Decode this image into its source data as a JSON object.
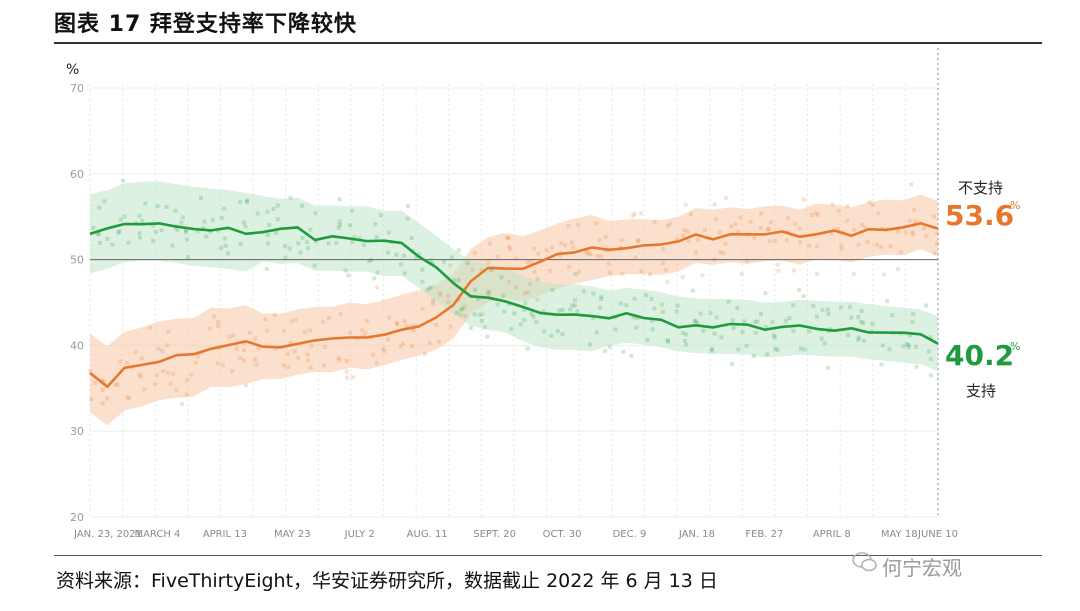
{
  "header": {
    "title": "图表 17 拜登支持率下降较快"
  },
  "source": {
    "text": "资料来源：FiveThirtyEight，华安证券研究所，数据截止 2022 年 6 月 13 日"
  },
  "watermark": {
    "text": "何宁宏观"
  },
  "chart_data": {
    "type": "line",
    "title": "",
    "ylabel": "%",
    "xlabel": "",
    "ylim": [
      20,
      70
    ],
    "yticks": [
      20,
      30,
      40,
      50,
      60,
      70
    ],
    "x_tick_labels": [
      "JAN. 23, 2021",
      "MARCH 4",
      "APRIL 13",
      "MAY 23",
      "JULY 2",
      "AUG. 11",
      "SEPT. 20",
      "OCT. 30",
      "DEC. 9",
      "JAN. 18",
      "FEB. 27",
      "APRIL 8",
      "MAY 18",
      "JUNE 10"
    ],
    "x_tick_positions": [
      0,
      40,
      80,
      120,
      160,
      200,
      240,
      280,
      320,
      360,
      400,
      440,
      480,
      503
    ],
    "x_range": [
      0,
      503
    ],
    "reference_line": 50,
    "series": [
      {
        "name": "不支持",
        "color": "#e8772e",
        "band_color": "#f7c9a4",
        "latest": "53.6",
        "values": [
          36.8,
          35.3,
          37.0,
          37.5,
          38.2,
          38.5,
          38.6,
          39.8,
          39.7,
          40.1,
          39.9,
          39.9,
          40.4,
          40.7,
          40.7,
          41.2,
          41.0,
          41.5,
          42.1,
          42.6,
          43.3,
          44.6,
          47.4,
          48.8,
          49.3,
          48.9,
          49.6,
          50.4,
          51.0,
          51.4,
          51.3,
          51.5,
          51.5,
          51.4,
          51.8,
          52.8,
          52.6,
          52.9,
          52.7,
          53.0,
          53.1,
          52.6,
          53.3,
          53.2,
          52.9,
          53.5,
          53.8,
          53.7,
          54.4,
          53.6
        ]
      },
      {
        "name": "支持",
        "color": "#1f9a3c",
        "band_color": "#bfe5c8",
        "latest": "40.2",
        "values": [
          53.0,
          53.5,
          54.3,
          54.5,
          54.5,
          54.2,
          53.9,
          53.7,
          53.5,
          53.2,
          53.6,
          53.3,
          53.4,
          52.5,
          52.5,
          52.4,
          52.4,
          51.9,
          51.9,
          50.5,
          49.0,
          47.4,
          46.1,
          45.6,
          45.3,
          44.3,
          43.6,
          43.3,
          43.3,
          43.1,
          43.2,
          43.5,
          43.3,
          43.0,
          42.5,
          42.3,
          42.2,
          42.2,
          42.1,
          41.8,
          41.9,
          42.1,
          42.0,
          41.9,
          41.9,
          41.6,
          41.4,
          41.2,
          41.0,
          40.2
        ]
      }
    ],
    "legend_placement": "right end labels"
  }
}
